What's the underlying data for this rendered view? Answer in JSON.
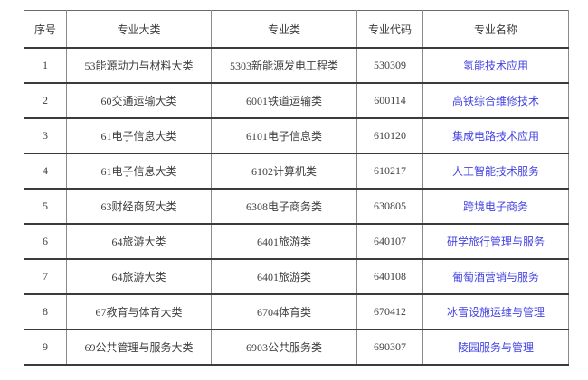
{
  "table": {
    "headers": [
      "序号",
      "专业大类",
      "专业类",
      "专业代码",
      "专业名称"
    ],
    "rows": [
      [
        "1",
        "53能源动力与材料大类",
        "5303新能源发电工程类",
        "530309",
        "氢能技术应用"
      ],
      [
        "2",
        "60交通运输大类",
        "6001铁道运输类",
        "600114",
        "高铁综合维修技术"
      ],
      [
        "3",
        "61电子信息大类",
        "6101电子信息类",
        "610120",
        "集成电路技术应用"
      ],
      [
        "4",
        "61电子信息大类",
        "6102计算机类",
        "610217",
        "人工智能技术服务"
      ],
      [
        "5",
        "63财经商贸大类",
        "6308电子商务类",
        "630805",
        "跨境电子商务"
      ],
      [
        "6",
        "64旅游大类",
        "6401旅游类",
        "640107",
        "研学旅行管理与服务"
      ],
      [
        "7",
        "64旅游大类",
        "6401旅游类",
        "640108",
        "葡萄酒营销与服务"
      ],
      [
        "8",
        "67教育与体育大类",
        "6704体育类",
        "670412",
        "冰雪设施运维与管理"
      ],
      [
        "9",
        "69公共管理与服务大类",
        "6903公共服务类",
        "690307",
        "陵园服务与管理"
      ]
    ],
    "column_keys": [
      "row-number",
      "major-category",
      "major-class",
      "major-code",
      "major-name"
    ]
  },
  "colors": {
    "link": "#4545e1",
    "text": "#3e3e3e",
    "border_horizontal": "#3b3b3b",
    "border_vertical": "#8a8a8a"
  }
}
